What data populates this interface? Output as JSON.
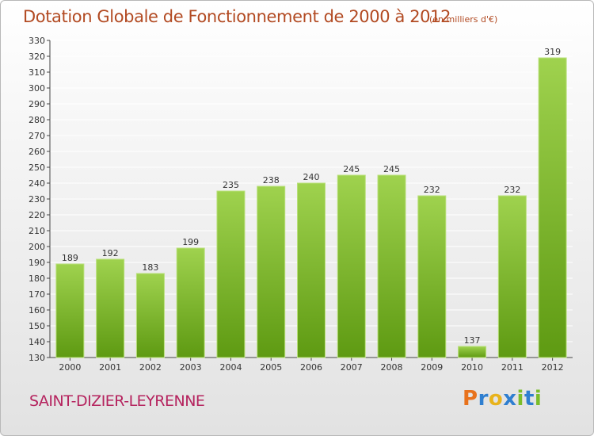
{
  "title": "Dotation Globale de Fonctionnement de 2000 à 2012",
  "subtitle": "(en milliers d'€)",
  "place": "SAINT-DIZIER-LEYRENNE",
  "logo": {
    "text": "Proxiti",
    "letters": [
      "P",
      "r",
      "o",
      "x",
      "i",
      "t",
      "i"
    ],
    "colors": [
      "#e8721c",
      "#2f7fd0",
      "#e8b31c",
      "#2f7fd0",
      "#7bbd2a",
      "#2f7fd0",
      "#7bbd2a"
    ]
  },
  "colors": {
    "bar_top": "#9fd24e",
    "bar_bottom": "#5e9a12",
    "title": "#b24a22",
    "place": "#b5235e",
    "grid": "#ffffff"
  },
  "chart_data": {
    "type": "bar",
    "title": "Dotation Globale de Fonctionnement de 2000 à 2012",
    "subtitle": "(en milliers d'€)",
    "xlabel": "",
    "ylabel": "",
    "categories": [
      "2000",
      "2001",
      "2002",
      "2003",
      "2004",
      "2005",
      "2006",
      "2007",
      "2008",
      "2009",
      "2010",
      "2011",
      "2012"
    ],
    "values": [
      189,
      192,
      183,
      199,
      235,
      238,
      240,
      245,
      245,
      232,
      137,
      232,
      319
    ],
    "ylim": [
      130,
      330
    ],
    "yticks": [
      130,
      140,
      150,
      160,
      170,
      180,
      190,
      200,
      210,
      220,
      230,
      240,
      250,
      260,
      270,
      280,
      290,
      300,
      310,
      320,
      330
    ],
    "grid": true,
    "legend": "none"
  }
}
